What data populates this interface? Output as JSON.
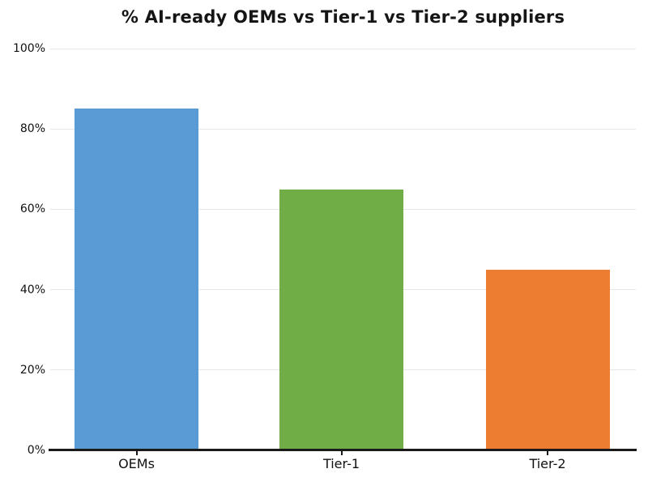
{
  "chart_data": {
    "type": "bar",
    "title": "% AI-ready OEMs vs Tier-1 vs Tier-2 suppliers",
    "categories": [
      "OEMs",
      "Tier-1",
      "Tier-2"
    ],
    "values": [
      85,
      65,
      45
    ],
    "xlabel": "",
    "ylabel": "",
    "ylim": [
      0,
      100
    ],
    "yticks": [
      0,
      20,
      40,
      60,
      80,
      100
    ],
    "ytick_labels": [
      "0%",
      "20%",
      "40%",
      "60%",
      "80%",
      "100%"
    ],
    "bar_colors": [
      "#5b9bd5",
      "#70ad47",
      "#ed7d31"
    ],
    "grid": "horizontal",
    "gridline_color": "#e7e7e7",
    "axis_color": "#1a1a1a",
    "text_color": "#111111",
    "background": "#ffffff",
    "legend": "none"
  }
}
